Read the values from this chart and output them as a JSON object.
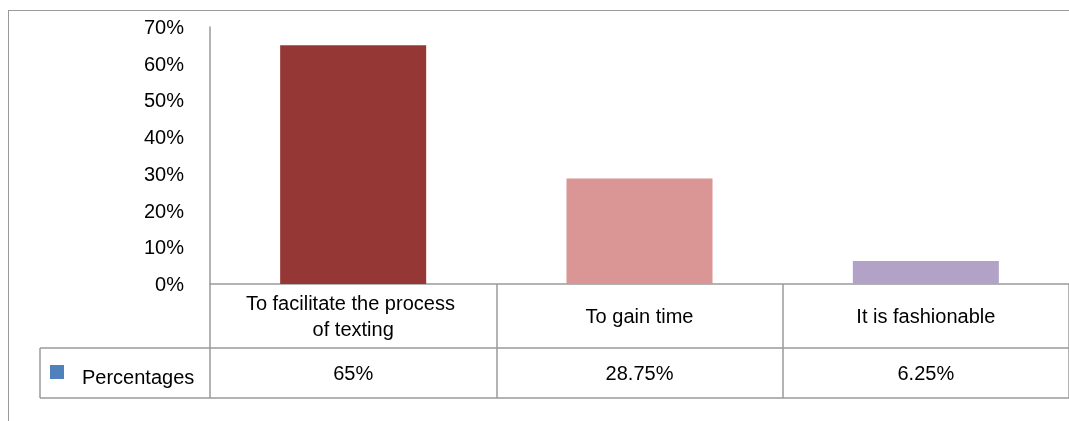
{
  "chart_data": {
    "type": "bar",
    "categories": [
      "To facilitate the process of texting",
      "To gain time",
      "It is fashionable"
    ],
    "series": [
      {
        "name": "Percentages",
        "color": "#4f81bd",
        "colors": [
          "#953735",
          "#d99694",
          "#b3a2c7"
        ],
        "values": [
          65,
          28.75,
          6.25
        ],
        "value_labels": [
          "65%",
          "28.75%",
          "6.25%"
        ]
      }
    ],
    "ylim": [
      0,
      70
    ],
    "yticks": [
      {
        "value": 0,
        "label": "0%"
      },
      {
        "value": 10,
        "label": "10%"
      },
      {
        "value": 20,
        "label": "20%"
      },
      {
        "value": 30,
        "label": "30%"
      },
      {
        "value": 40,
        "label": "40%"
      },
      {
        "value": 50,
        "label": "50%"
      },
      {
        "value": 60,
        "label": "60%"
      },
      {
        "value": 70,
        "label": "70%"
      }
    ],
    "legend": "bottom left"
  }
}
